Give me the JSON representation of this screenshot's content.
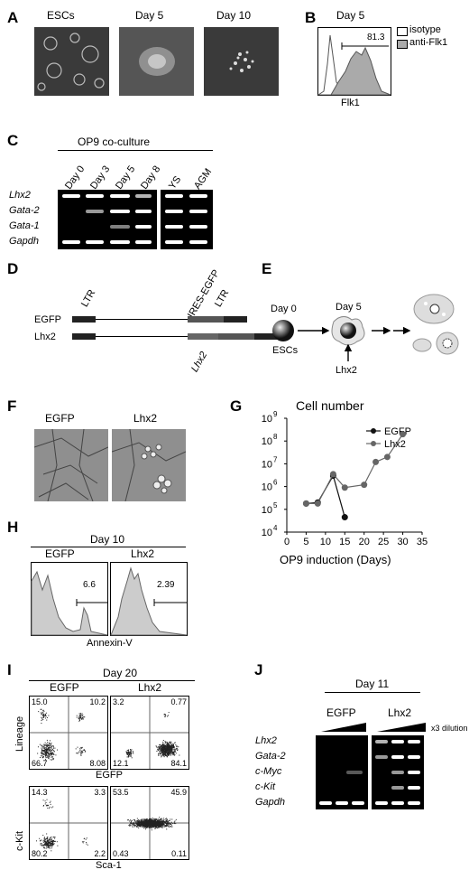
{
  "panels": {
    "a": "A",
    "b": "B",
    "c": "C",
    "d": "D",
    "e": "E",
    "f": "F",
    "g": "G",
    "h": "H",
    "i": "I",
    "j": "J"
  },
  "panelA": {
    "labels": [
      "ESCs",
      "Day 5",
      "Day 10"
    ]
  },
  "panelB": {
    "title": "Day 5",
    "legend": [
      "isotype",
      "anti-Flk1"
    ],
    "gate_value": "81.3",
    "xlabel": "Flk1"
  },
  "panelC": {
    "header": "OP9 co-culture",
    "columns": [
      "Day 0",
      "Day 3",
      "Day 5",
      "Day 8",
      "YS",
      "AGM"
    ],
    "genes": [
      "Lhx2",
      "Gata-2",
      "Gata-1",
      "Gapdh"
    ]
  },
  "panelD": {
    "rows": [
      "EGFP",
      "Lhx2"
    ],
    "labels": {
      "ltr_left": "LTR",
      "ires": "IRES-EGFP",
      "ltr_right": "LTR",
      "insert": "Lhx2"
    }
  },
  "panelE": {
    "day0": "Day 0",
    "day5": "Day 5",
    "escs": "ESCs",
    "factor": "Lhx2"
  },
  "panelF": {
    "labels": [
      "EGFP",
      "Lhx2"
    ]
  },
  "panelH": {
    "title": "Day 10",
    "groups": [
      "EGFP",
      "Lhx2"
    ],
    "values": [
      "6.6",
      "2.39"
    ],
    "xlabel": "Annexin-V"
  },
  "panelI": {
    "title": "Day 20",
    "groups": [
      "EGFP",
      "Lhx2"
    ],
    "top_ylabel": "Lineage",
    "top_xlabel": "EGFP",
    "bottom_ylabel": "c-Kit",
    "bottom_xlabel": "Sca-1",
    "top_egfp": [
      "15.0",
      "10.2",
      "66.7",
      "8.08"
    ],
    "top_lhx2": [
      "3.2",
      "0.77",
      "12.1",
      "84.1"
    ],
    "bottom_egfp": [
      "14.3",
      "3.3",
      "80.2",
      "2.2"
    ],
    "bottom_lhx2": [
      "53.5",
      "45.9",
      "0.43",
      "0.11"
    ]
  },
  "panelJ": {
    "title": "Day 11",
    "groups": [
      "EGFP",
      "Lhx2"
    ],
    "dilution": "x3 dilution",
    "genes": [
      "Lhx2",
      "Gata-2",
      "c-Myc",
      "c-Kit",
      "Gapdh"
    ]
  },
  "chart_data": {
    "type": "line",
    "title": "Cell number",
    "xlabel": "OP9 induction (Days)",
    "ylabel": "",
    "xlim": [
      0,
      35
    ],
    "ylim": [
      10000,
      1000000000
    ],
    "log_y": true,
    "x_ticks": [
      "0",
      "5",
      "10",
      "15",
      "20",
      "25",
      "30",
      "35"
    ],
    "y_ticks": [
      "10",
      "10",
      "10",
      "10",
      "10",
      "10"
    ],
    "y_tick_exponents": [
      "4",
      "5",
      "6",
      "7",
      "8",
      "9"
    ],
    "legend_position": "top-right",
    "series": [
      {
        "name": "EGFP",
        "color": "#111111",
        "x": [
          5,
          8,
          12,
          15
        ],
        "y": [
          180000,
          200000,
          3000000,
          45000
        ]
      },
      {
        "name": "Lhx2",
        "color": "#666666",
        "x": [
          5,
          8,
          12,
          15,
          20,
          23,
          26,
          30
        ],
        "y": [
          180000,
          180000,
          3500000,
          900000,
          1200000,
          12000000,
          20000000,
          200000000
        ]
      }
    ]
  }
}
